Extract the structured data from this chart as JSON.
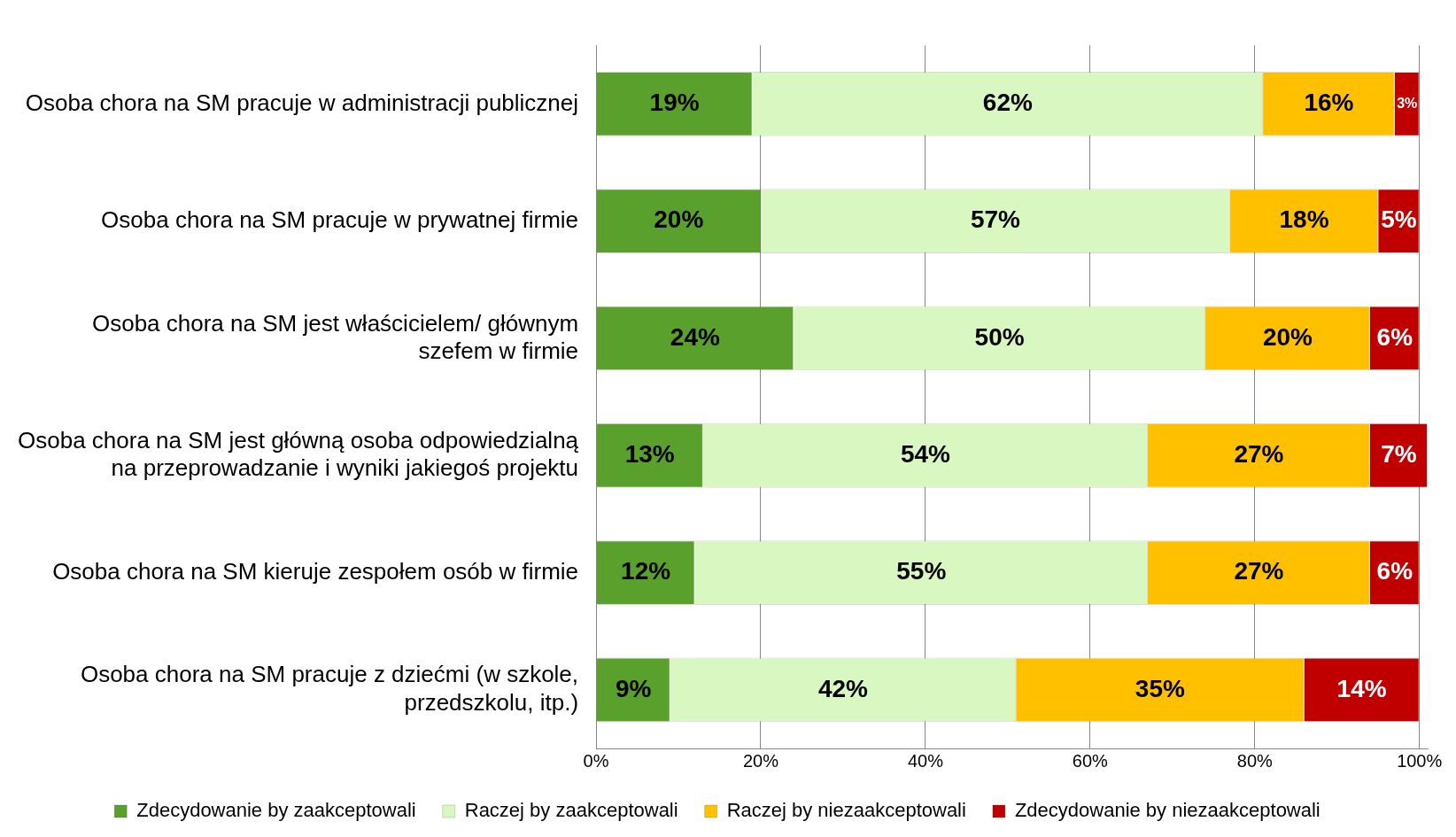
{
  "chart_data": {
    "type": "bar",
    "orientation": "horizontal",
    "stacked": true,
    "categories": [
      "Osoba chora na SM pracuje w administracji publicznej",
      "Osoba chora na SM pracuje w prywatnej firmie",
      "Osoba chora na SM jest właścicielem/ głównym szefem w firmie",
      "Osoba chora na SM jest główną osoba odpowiedzialną na przeprowadzanie i wyniki jakiegoś projektu",
      "Osoba chora na SM kieruje zespołem osób w firmie",
      "Osoba chora na SM pracuje z dziećmi (w szkole, przedszkolu, itp.)"
    ],
    "series": [
      {
        "name": "Zdecydowanie by zaakceptowali",
        "color": "#5aa02c",
        "values": [
          19,
          20,
          24,
          13,
          12,
          9
        ],
        "value_labels": [
          "19%",
          "20%",
          "24%",
          "13%",
          "12%",
          "9%"
        ]
      },
      {
        "name": "Raczej by zaakceptowali",
        "color": "#d9f7c0",
        "values": [
          62,
          57,
          50,
          54,
          55,
          42
        ],
        "value_labels": [
          "62%",
          "57%",
          "50%",
          "54%",
          "55%",
          "42%"
        ]
      },
      {
        "name": "Raczej by niezaakceptowali",
        "color": "#ffc000",
        "values": [
          16,
          18,
          20,
          27,
          27,
          35
        ],
        "value_labels": [
          "16%",
          "18%",
          "20%",
          "27%",
          "27%",
          "35%"
        ]
      },
      {
        "name": "Zdecydowanie by niezaakceptowali",
        "color": "#c00000",
        "values": [
          3,
          5,
          6,
          7,
          6,
          14
        ],
        "value_labels": [
          "3%",
          "5%",
          "6%",
          "7%",
          "6%",
          "14%"
        ]
      }
    ],
    "xlim": [
      0,
      101
    ],
    "xticks": [
      {
        "value": 0,
        "label": "0%"
      },
      {
        "value": 20,
        "label": "20%"
      },
      {
        "value": 40,
        "label": "40%"
      },
      {
        "value": 60,
        "label": "60%"
      },
      {
        "value": 80,
        "label": "80%"
      },
      {
        "value": 100,
        "label": "100%"
      }
    ],
    "grid": "x",
    "legend": "bottom"
  }
}
